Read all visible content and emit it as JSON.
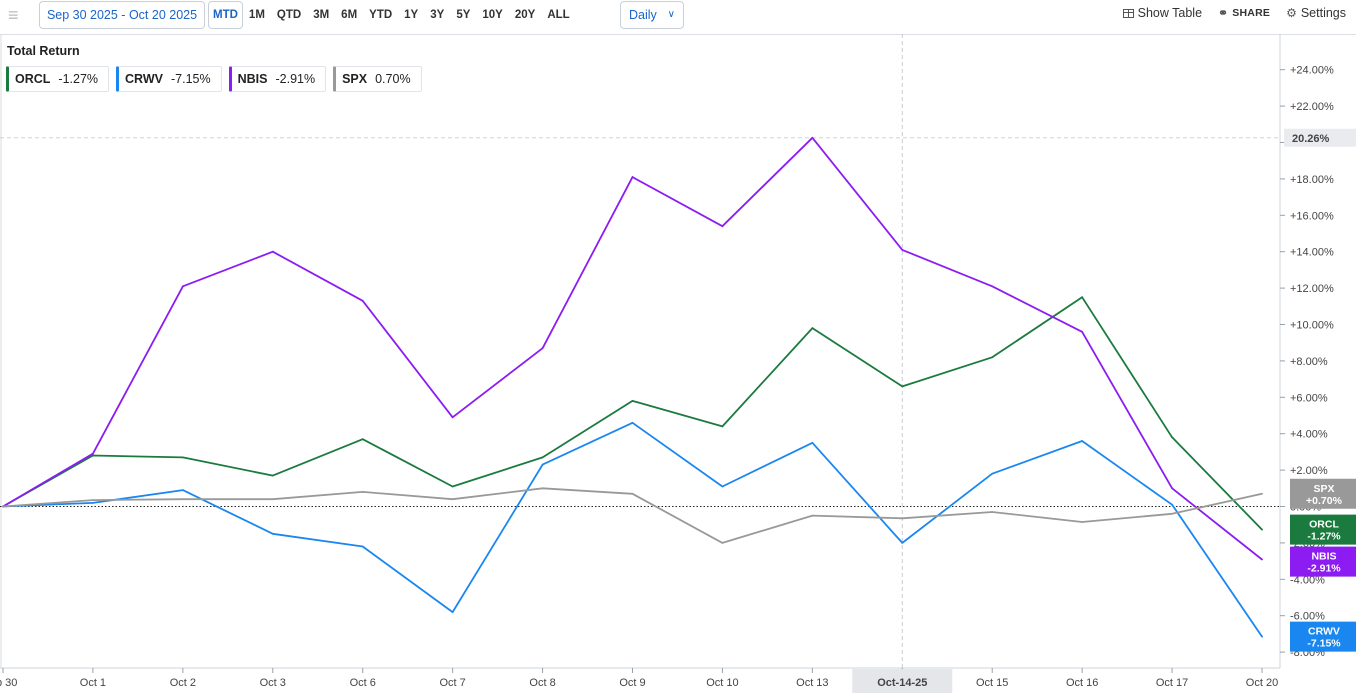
{
  "toolbar": {
    "date_range": "Sep 30 2025 - Oct 20 2025",
    "periods": [
      "MTD",
      "1M",
      "QTD",
      "3M",
      "6M",
      "YTD",
      "1Y",
      "3Y",
      "5Y",
      "10Y",
      "20Y",
      "ALL"
    ],
    "active_period": "MTD",
    "interval": "Daily",
    "show_table": "Show Table",
    "share": "SHARE",
    "settings": "Settings"
  },
  "chart_data": {
    "type": "line",
    "title": "Total Return",
    "x": [
      "p 30",
      "Oct 1",
      "Oct 2",
      "Oct 3",
      "Oct 6",
      "Oct 7",
      "Oct 8",
      "Oct 9",
      "Oct 10",
      "Oct 13",
      "Oct-14-25",
      "Oct 15",
      "Oct 16",
      "Oct 17",
      "Oct 20"
    ],
    "highlight_x": "Oct-14-25",
    "ylim": [
      -8.5,
      25.5
    ],
    "yticks": [
      "+24.00%",
      "+22.00%",
      "+20.00%",
      "+18.00%",
      "+16.00%",
      "+14.00%",
      "+12.00%",
      "+10.00%",
      "+8.00%",
      "+6.00%",
      "+4.00%",
      "+2.00%",
      "0.00%",
      "-2.00%",
      "-4.00%",
      "-6.00%",
      "-8.00%"
    ],
    "ytick_values": [
      24,
      22,
      20,
      18,
      16,
      14,
      12,
      10,
      8,
      6,
      4,
      2,
      0,
      -2,
      -4,
      -6,
      -8
    ],
    "max_marker": {
      "value": 20.26,
      "label": "20.26%"
    },
    "grid": false,
    "series": [
      {
        "name": "ORCL",
        "legend_value": "-1.27%",
        "tag": "-1.27%",
        "color": "#1b7a3e",
        "values": [
          0,
          2.8,
          2.7,
          1.7,
          3.7,
          1.1,
          2.7,
          5.8,
          4.4,
          9.8,
          6.6,
          8.2,
          11.5,
          3.8,
          -1.27
        ]
      },
      {
        "name": "CRWV",
        "legend_value": "-7.15%",
        "tag": "-7.15%",
        "color": "#1a87f0",
        "values": [
          0,
          0.2,
          0.9,
          -1.5,
          -2.2,
          -5.8,
          2.3,
          4.6,
          1.1,
          3.5,
          -2.0,
          1.8,
          3.6,
          0.1,
          -7.15
        ]
      },
      {
        "name": "NBIS",
        "legend_value": "-2.91%",
        "tag": "-2.91%",
        "color": "#8c1cf2",
        "values": [
          0,
          2.9,
          12.1,
          14.0,
          11.3,
          4.9,
          8.7,
          18.1,
          15.4,
          20.26,
          14.1,
          12.1,
          9.6,
          1.0,
          -2.91
        ]
      },
      {
        "name": "SPX",
        "legend_value": "0.70%",
        "tag": "+0.70%",
        "color": "#999999",
        "values": [
          0,
          0.35,
          0.4,
          0.4,
          0.8,
          0.4,
          1.0,
          0.7,
          -2.0,
          -0.5,
          -0.65,
          -0.3,
          -0.85,
          -0.4,
          0.7
        ]
      }
    ]
  }
}
